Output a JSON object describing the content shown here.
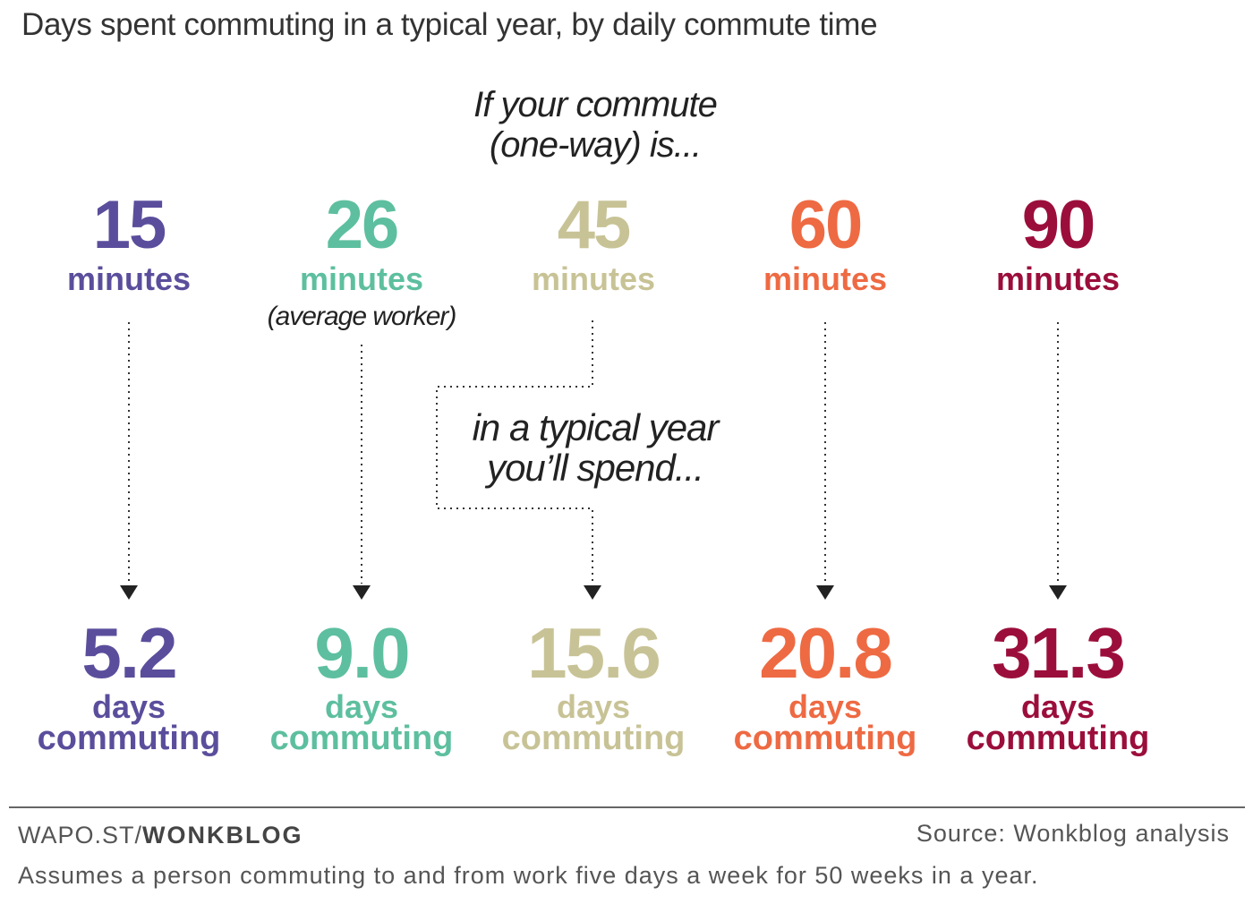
{
  "title": "Days spent commuting in a typical year, by daily commute time",
  "intro": {
    "line1": "If your commute",
    "line2": "(one-way) is..."
  },
  "middle": {
    "line1": "in a typical year",
    "line2": "you’ll spend..."
  },
  "columns": [
    {
      "minutes": "15",
      "unit": "minutes",
      "note": "",
      "days": "5.2",
      "days_l1": "days",
      "days_l2": "commuting",
      "color": "#5a4e9c"
    },
    {
      "minutes": "26",
      "unit": "minutes",
      "note": "(average worker)",
      "days": "9.0",
      "days_l1": "days",
      "days_l2": "commuting",
      "color": "#5dbf9f"
    },
    {
      "minutes": "45",
      "unit": "minutes",
      "note": "",
      "days": "15.6",
      "days_l1": "days",
      "days_l2": "commuting",
      "color": "#c8c396"
    },
    {
      "minutes": "60",
      "unit": "minutes",
      "note": "",
      "days": "20.8",
      "days_l1": "days",
      "days_l2": "commuting",
      "color": "#ee6a43"
    },
    {
      "minutes": "90",
      "unit": "minutes",
      "note": "",
      "days": "31.3",
      "days_l1": "days",
      "days_l2": "commuting",
      "color": "#9b0e3b"
    }
  ],
  "footer": {
    "brand_prefix": "WAPO.ST/",
    "brand_bold": "WONKBLOG",
    "source": "Source: Wonkblog analysis",
    "note": "Assumes a person commuting to and from work five days a week for 50 weeks in a year."
  }
}
